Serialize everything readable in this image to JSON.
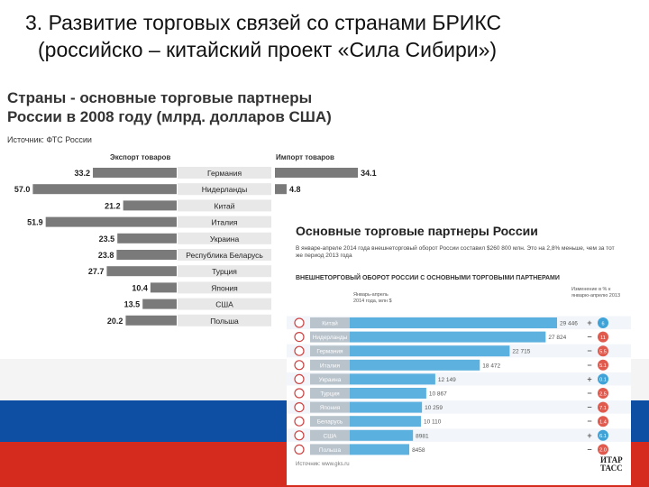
{
  "slide": {
    "title_line1": "3. Развитие торговых связей со странами БРИКС",
    "title_line2": "(российско – китайский проект «Сила Сибири»)"
  },
  "colors": {
    "bar_gray": "#7a7a7a",
    "flag_white": "#ffffff",
    "flag_blue": "#0e4fa3",
    "flag_red": "#d52b1e",
    "accent_blue": "#3fa3d8",
    "accent_red": "#e05a4e"
  },
  "chart_data": [
    {
      "type": "bar",
      "title_line1": "Страны - основные торговые партнеры",
      "title_line2": "России в 2008 году (млрд. долларов США)",
      "source": "Источник: ФТС России",
      "categories": [
        "Германия",
        "Нидерланды",
        "Китай",
        "Италия",
        "Украина",
        "Республика Беларусь",
        "Турция",
        "Япония",
        "США",
        "Польша"
      ],
      "series": [
        {
          "name": "Экспорт товаров",
          "values": [
            33.2,
            57.0,
            21.2,
            51.9,
            23.5,
            23.8,
            27.7,
            10.4,
            13.5,
            20.2
          ]
        },
        {
          "name": "Импорт товаров",
          "values": [
            34.1,
            4.8,
            null,
            null,
            null,
            null,
            null,
            null,
            null,
            null
          ]
        }
      ],
      "value_labels": {
        "export": [
          "33.2",
          "57.0",
          "21.2",
          "51.9",
          "23.5",
          "23.8",
          "27.7",
          "10.4",
          "13.5",
          "20.2"
        ],
        "import": [
          "34.1",
          "4.8",
          "",
          "",
          "",
          "",
          "",
          "",
          "",
          ""
        ]
      }
    },
    {
      "type": "bar",
      "title": "Основные торговые партнеры России",
      "description": "В январе-апреле 2014 года внешнеторговый оборот России составил $260 800 млн. Это на 2,8% меньше, чем за тот же период 2013 года",
      "subtitle": "ВНЕШНЕТОРГОВЫЙ ОБОРОТ РОССИИ С ОСНОВНЫМИ ТОРГОВЫМИ ПАРТНЕРАМИ",
      "col1_label": "Январь-апрель 2014 года, млн $",
      "col2_label": "Изменение в % к январю-апрелю 2013",
      "categories": [
        "Китай",
        "Нидерланды",
        "Германия",
        "Италия",
        "Украина",
        "Турция",
        "Япония",
        "Беларусь",
        "США",
        "Польша"
      ],
      "values": [
        29446,
        27824,
        22715,
        18472,
        12149,
        10867,
        10259,
        10110,
        8981,
        8458
      ],
      "value_labels": [
        "29 446",
        "27 824",
        "22 715",
        "18 472",
        "12 149",
        "10 867",
        "10 259",
        "10 110",
        "8981",
        "8458"
      ],
      "change_signs": [
        "+",
        "−",
        "−",
        "−",
        "+",
        "−",
        "−",
        "−",
        "+",
        "−"
      ],
      "change_labels": [
        "6",
        "11",
        "5.5",
        "5.1",
        "0.1",
        "2.5",
        "7.1",
        "1.4",
        "6.1",
        "2.0"
      ],
      "source": "Источник: www.gks.ru",
      "logo_line1": "ИТАР",
      "logo_line2": "ТАСС"
    }
  ]
}
